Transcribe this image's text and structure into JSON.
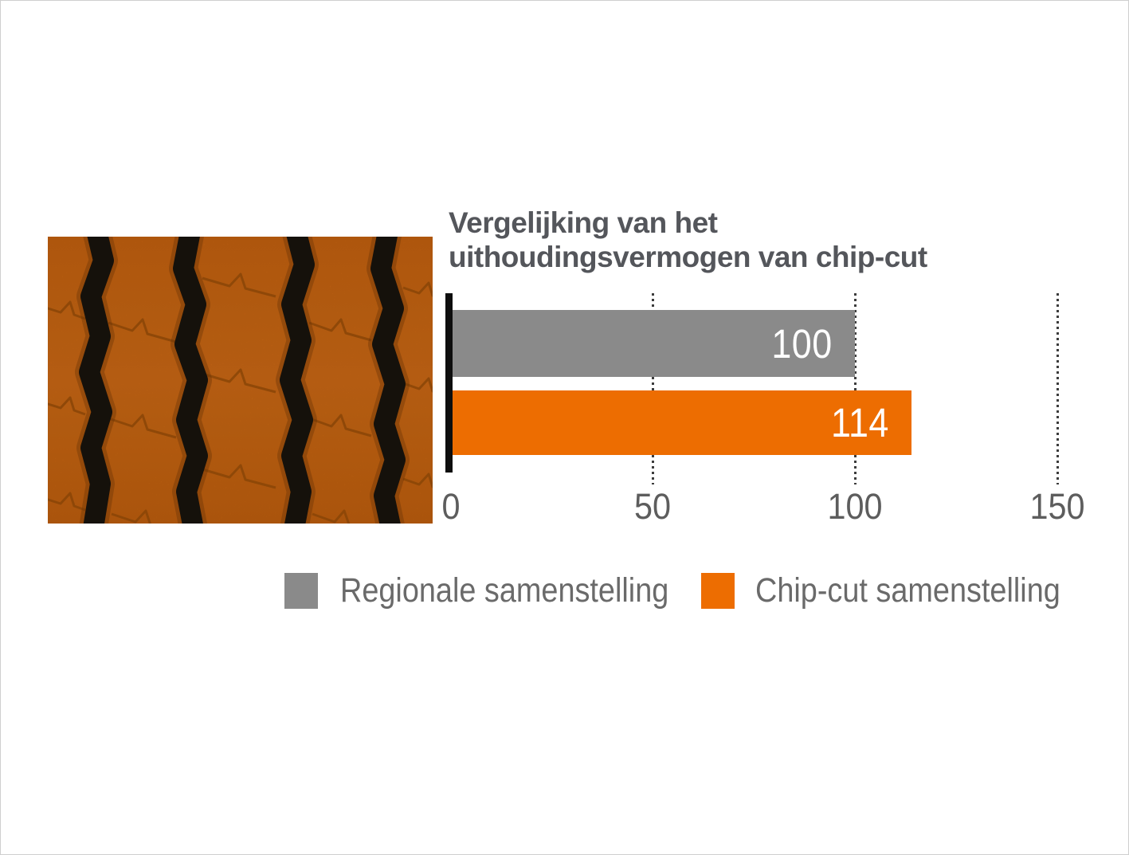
{
  "page": {
    "background": "#ffffff",
    "border_color": "#cfcfcf"
  },
  "tire_image": {
    "icon": "tire-tread-photo",
    "description_colors": {
      "tread_orange": "#CB6712",
      "groove_black": "#15110B",
      "sipe_brown": "#8A4507"
    }
  },
  "chart_data": {
    "type": "bar",
    "orientation": "horizontal",
    "title_line1": "Vergelijking van het",
    "title_line2": "uithoudingsvermogen van chip-cut",
    "title": "Vergelijking van het uithoudingsvermogen van chip-cut",
    "categories": [
      "Regionale samenstelling",
      "Chip-cut samenstelling"
    ],
    "series": [
      {
        "name": "Regionale samenstelling",
        "value": 100,
        "label": "100",
        "color": "#8A8A8A"
      },
      {
        "name": "Chip-cut samenstelling",
        "value": 114,
        "label": "114",
        "color": "#ED6D01"
      }
    ],
    "xlim": [
      0,
      150
    ],
    "xticks": [
      "0",
      "50",
      "100",
      "150"
    ],
    "grid": "dotted-vertical-at-50-100-150",
    "legend_position": "bottom",
    "value_labels": "inside-end-white"
  },
  "legend": {
    "items": [
      {
        "label": "Regionale samenstelling",
        "color": "#8A8A8A"
      },
      {
        "label": "Chip-cut samenstelling",
        "color": "#ED6D01"
      }
    ]
  },
  "colors": {
    "title_text": "#54565B",
    "tick_label": "#5D5D5D",
    "legend_label": "#6A6A6A",
    "axis": "#0E0E0E",
    "bar_gray": "#8A8A8A",
    "bar_orange": "#ED6D01"
  }
}
